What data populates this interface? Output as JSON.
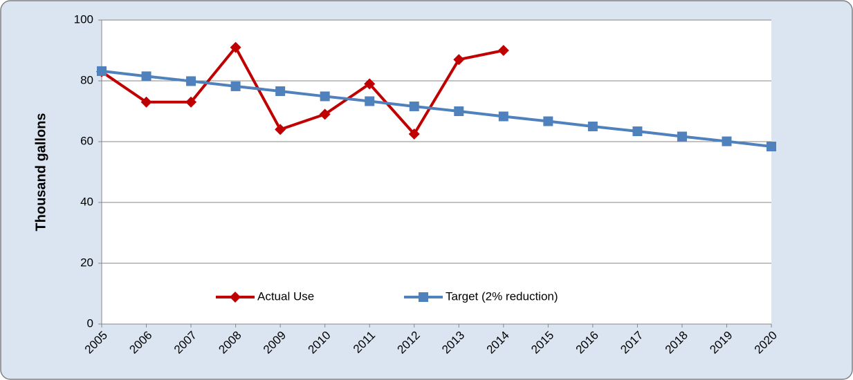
{
  "chart_data": {
    "type": "line",
    "categories": [
      "2005",
      "2006",
      "2007",
      "2008",
      "2009",
      "2010",
      "2011",
      "2012",
      "2013",
      "2014",
      "2015",
      "2016",
      "2017",
      "2018",
      "2019",
      "2020"
    ],
    "y_label": "Thousand gallons",
    "series": [
      {
        "name": "Actual Use",
        "color": "#c00000",
        "marker": "diamond",
        "values": [
          83,
          73,
          73,
          91,
          64,
          69,
          79,
          62.5,
          87,
          90,
          null,
          null,
          null,
          null,
          null,
          null
        ]
      },
      {
        "name": "Target (2% reduction)",
        "color": "#4f81bd",
        "marker": "square",
        "values": [
          83.2,
          81.5,
          79.9,
          78.2,
          76.6,
          74.9,
          73.3,
          71.6,
          70.0,
          68.3,
          66.7,
          65.0,
          63.4,
          61.7,
          60.1,
          58.4
        ]
      }
    ],
    "ylim": [
      0,
      100
    ],
    "yticks": [
      0,
      20,
      40,
      60,
      80,
      100
    ],
    "grid": true,
    "legend": "bottom"
  }
}
